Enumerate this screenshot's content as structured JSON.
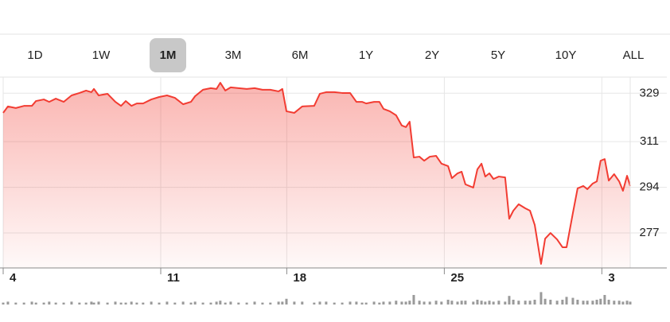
{
  "tabs": [
    "1D",
    "1W",
    "1M",
    "3M",
    "6M",
    "1Y",
    "2Y",
    "5Y",
    "10Y",
    "ALL"
  ],
  "selected_tab": "1M",
  "chart_data": {
    "type": "line",
    "color": "#f23c32",
    "grid": true,
    "x": [
      0,
      0.15,
      0.4,
      0.66,
      0.91,
      1.04,
      1.29,
      1.46,
      1.67,
      1.92,
      2.17,
      2.42,
      2.63,
      2.8,
      2.88,
      3.03,
      3.31,
      3.56,
      3.74,
      3.89,
      4.07,
      4.24,
      4.44,
      4.7,
      4.95,
      5.2,
      5.45,
      5.71,
      5.96,
      6.09,
      6.34,
      6.59,
      6.77,
      6.89,
      7.05,
      7.22,
      7.47,
      7.73,
      7.98,
      8.23,
      8.48,
      8.74,
      8.86,
      8.99,
      9.24,
      9.49,
      9.87,
      10.05,
      10.25,
      10.51,
      10.76,
      11.01,
      11.21,
      11.39,
      11.52,
      11.77,
      11.94,
      12.07,
      12.27,
      12.47,
      12.65,
      12.78,
      12.9,
      13.03,
      13.21,
      13.36,
      13.54,
      13.74,
      13.91,
      14.12,
      14.24,
      14.42,
      14.55,
      14.67,
      14.92,
      15.05,
      15.18,
      15.3,
      15.43,
      15.56,
      15.73,
      15.93,
      16.06,
      16.19,
      16.36,
      16.57,
      16.72,
      16.87,
      17.07,
      17.2,
      17.37,
      17.58,
      17.75,
      17.88,
      18.08,
      18.23,
      18.41,
      18.54,
      18.71,
      18.84,
      18.96,
      19.09,
      19.22,
      19.39,
      19.55,
      19.67,
      19.8,
      19.9
    ],
    "values": [
      321.7,
      324.1,
      323.5,
      324.3,
      324.3,
      326.1,
      326.7,
      325.8,
      327.0,
      325.8,
      328.2,
      329.1,
      330.0,
      329.4,
      330.6,
      328.2,
      328.8,
      325.8,
      324.3,
      326.1,
      324.3,
      325.2,
      325.2,
      326.7,
      327.6,
      328.2,
      327.3,
      324.9,
      325.8,
      327.9,
      330.3,
      330.9,
      330.6,
      332.9,
      330.0,
      331.2,
      330.9,
      330.6,
      330.9,
      330.3,
      330.3,
      329.7,
      330.6,
      322.3,
      321.7,
      324.1,
      324.3,
      328.8,
      329.4,
      329.4,
      329.1,
      329.1,
      325.8,
      325.8,
      325.2,
      325.8,
      325.8,
      323.2,
      322.3,
      320.8,
      317.0,
      316.4,
      318.4,
      305.1,
      305.4,
      303.9,
      305.4,
      305.7,
      302.8,
      301.9,
      297.4,
      299.2,
      299.8,
      295.1,
      293.9,
      300.7,
      302.8,
      298.0,
      299.2,
      297.1,
      298.0,
      297.7,
      282.3,
      285.3,
      287.7,
      286.2,
      285.3,
      280.0,
      265.5,
      274.9,
      277.0,
      274.6,
      271.7,
      271.7,
      284.4,
      293.6,
      294.5,
      293.3,
      295.4,
      296.2,
      303.9,
      304.5,
      296.5,
      298.9,
      296.2,
      292.7,
      298.3,
      294.5
    ],
    "volume": [
      2,
      3,
      2,
      2,
      3,
      2,
      2,
      3,
      2,
      2,
      3,
      2,
      2,
      3,
      2,
      3,
      2,
      3,
      2,
      2,
      3,
      2,
      2,
      3,
      2,
      3,
      2,
      3,
      2,
      3,
      2,
      2,
      3,
      4,
      2,
      3,
      2,
      2,
      3,
      2,
      2,
      3,
      3,
      6,
      3,
      3,
      2,
      3,
      3,
      2,
      2,
      3,
      3,
      2,
      2,
      3,
      2,
      3,
      3,
      4,
      3,
      3,
      4,
      10,
      4,
      3,
      3,
      4,
      3,
      5,
      4,
      3,
      4,
      4,
      3,
      5,
      4,
      3,
      4,
      3,
      4,
      3,
      9,
      5,
      4,
      4,
      4,
      5,
      13,
      6,
      5,
      4,
      5,
      8,
      7,
      5,
      4,
      4,
      4,
      5,
      6,
      10,
      5,
      4,
      4,
      3,
      4,
      3
    ],
    "volume_color": "#9a9a9a",
    "xlim": [
      0,
      19.9
    ],
    "xticks": [
      {
        "value": 0,
        "label": "4"
      },
      {
        "value": 5,
        "label": "11"
      },
      {
        "value": 9,
        "label": "18"
      },
      {
        "value": 14,
        "label": "25"
      },
      {
        "value": 19,
        "label": "3"
      }
    ],
    "ylim": [
      264,
      335
    ],
    "yticks": [
      329,
      311,
      294,
      277
    ]
  }
}
